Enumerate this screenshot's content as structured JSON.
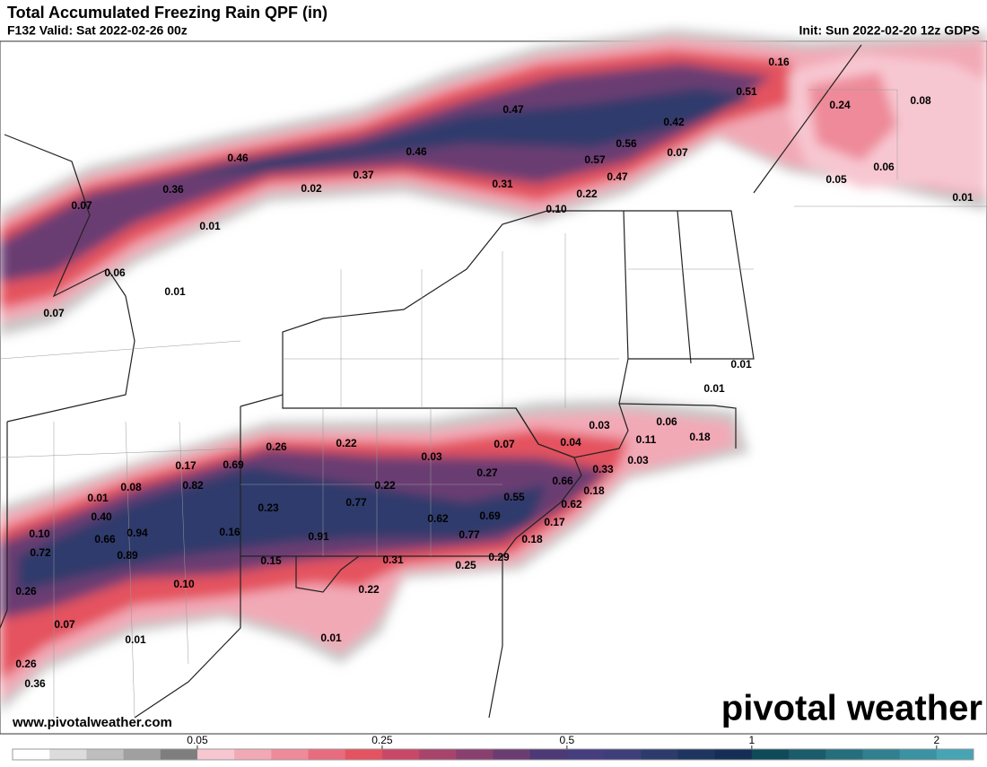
{
  "header": {
    "title": "Total Accumulated Freezing Rain QPF (in)",
    "valid": "F132 Valid: Sat 2022-02-26 00z",
    "init": "Init: Sun 2022-02-20 12z GDPS"
  },
  "map": {
    "point_labels": [
      "0.16",
      "0.51",
      "0.24",
      "0.08",
      "0.47",
      "0.42",
      "0.56",
      "0.46",
      "0.46",
      "0.57",
      "0.07",
      "0.06",
      "0.37",
      "0.47",
      "0.05",
      "0.36",
      "0.02",
      "0.31",
      "0.22",
      "0.01",
      "0.07",
      "0.10",
      "0.01",
      "0.06",
      "0.01",
      "0.07",
      "0.01",
      "0.01",
      "0.03",
      "0.06",
      "0.04",
      "0.11",
      "0.18",
      "0.26",
      "0.22",
      "0.07",
      "0.03",
      "0.03",
      "0.17",
      "0.69",
      "0.33",
      "0.27",
      "0.82",
      "0.22",
      "0.66",
      "0.08",
      "0.18",
      "0.55",
      "0.01",
      "0.77",
      "0.62",
      "0.23",
      "0.40",
      "0.69",
      "0.62",
      "0.17",
      "0.66",
      "0.94",
      "0.16",
      "0.91",
      "0.77",
      "0.10",
      "0.18",
      "0.72",
      "0.89",
      "0.15",
      "0.31",
      "0.25",
      "0.29",
      "0.10",
      "0.22",
      "0.26",
      "0.07",
      "0.01",
      "0.01",
      "0.26",
      "0.36"
    ]
  },
  "footer": {
    "url": "www.pivotalweather.com",
    "logo": "pivotal weather"
  },
  "colorbar": {
    "ticks": [
      0.05,
      0.25,
      0.5,
      1,
      2
    ],
    "colors": [
      "#ffffff",
      "#dcdcdc",
      "#bebebe",
      "#a0a0a0",
      "#7e7e7e",
      "#f7c7d1",
      "#f2a9b6",
      "#ee8a9a",
      "#e96b7e",
      "#e4535f",
      "#c94868",
      "#a8446b",
      "#8a406e",
      "#6b3c72",
      "#4d3975",
      "#463d80",
      "#3e3f7a",
      "#2d3b6c",
      "#1e3560",
      "#152e56",
      "#0f4a5a",
      "#1a5c6c",
      "#256e7e",
      "#308090",
      "#3b92a2",
      "#46a4b4"
    ]
  }
}
